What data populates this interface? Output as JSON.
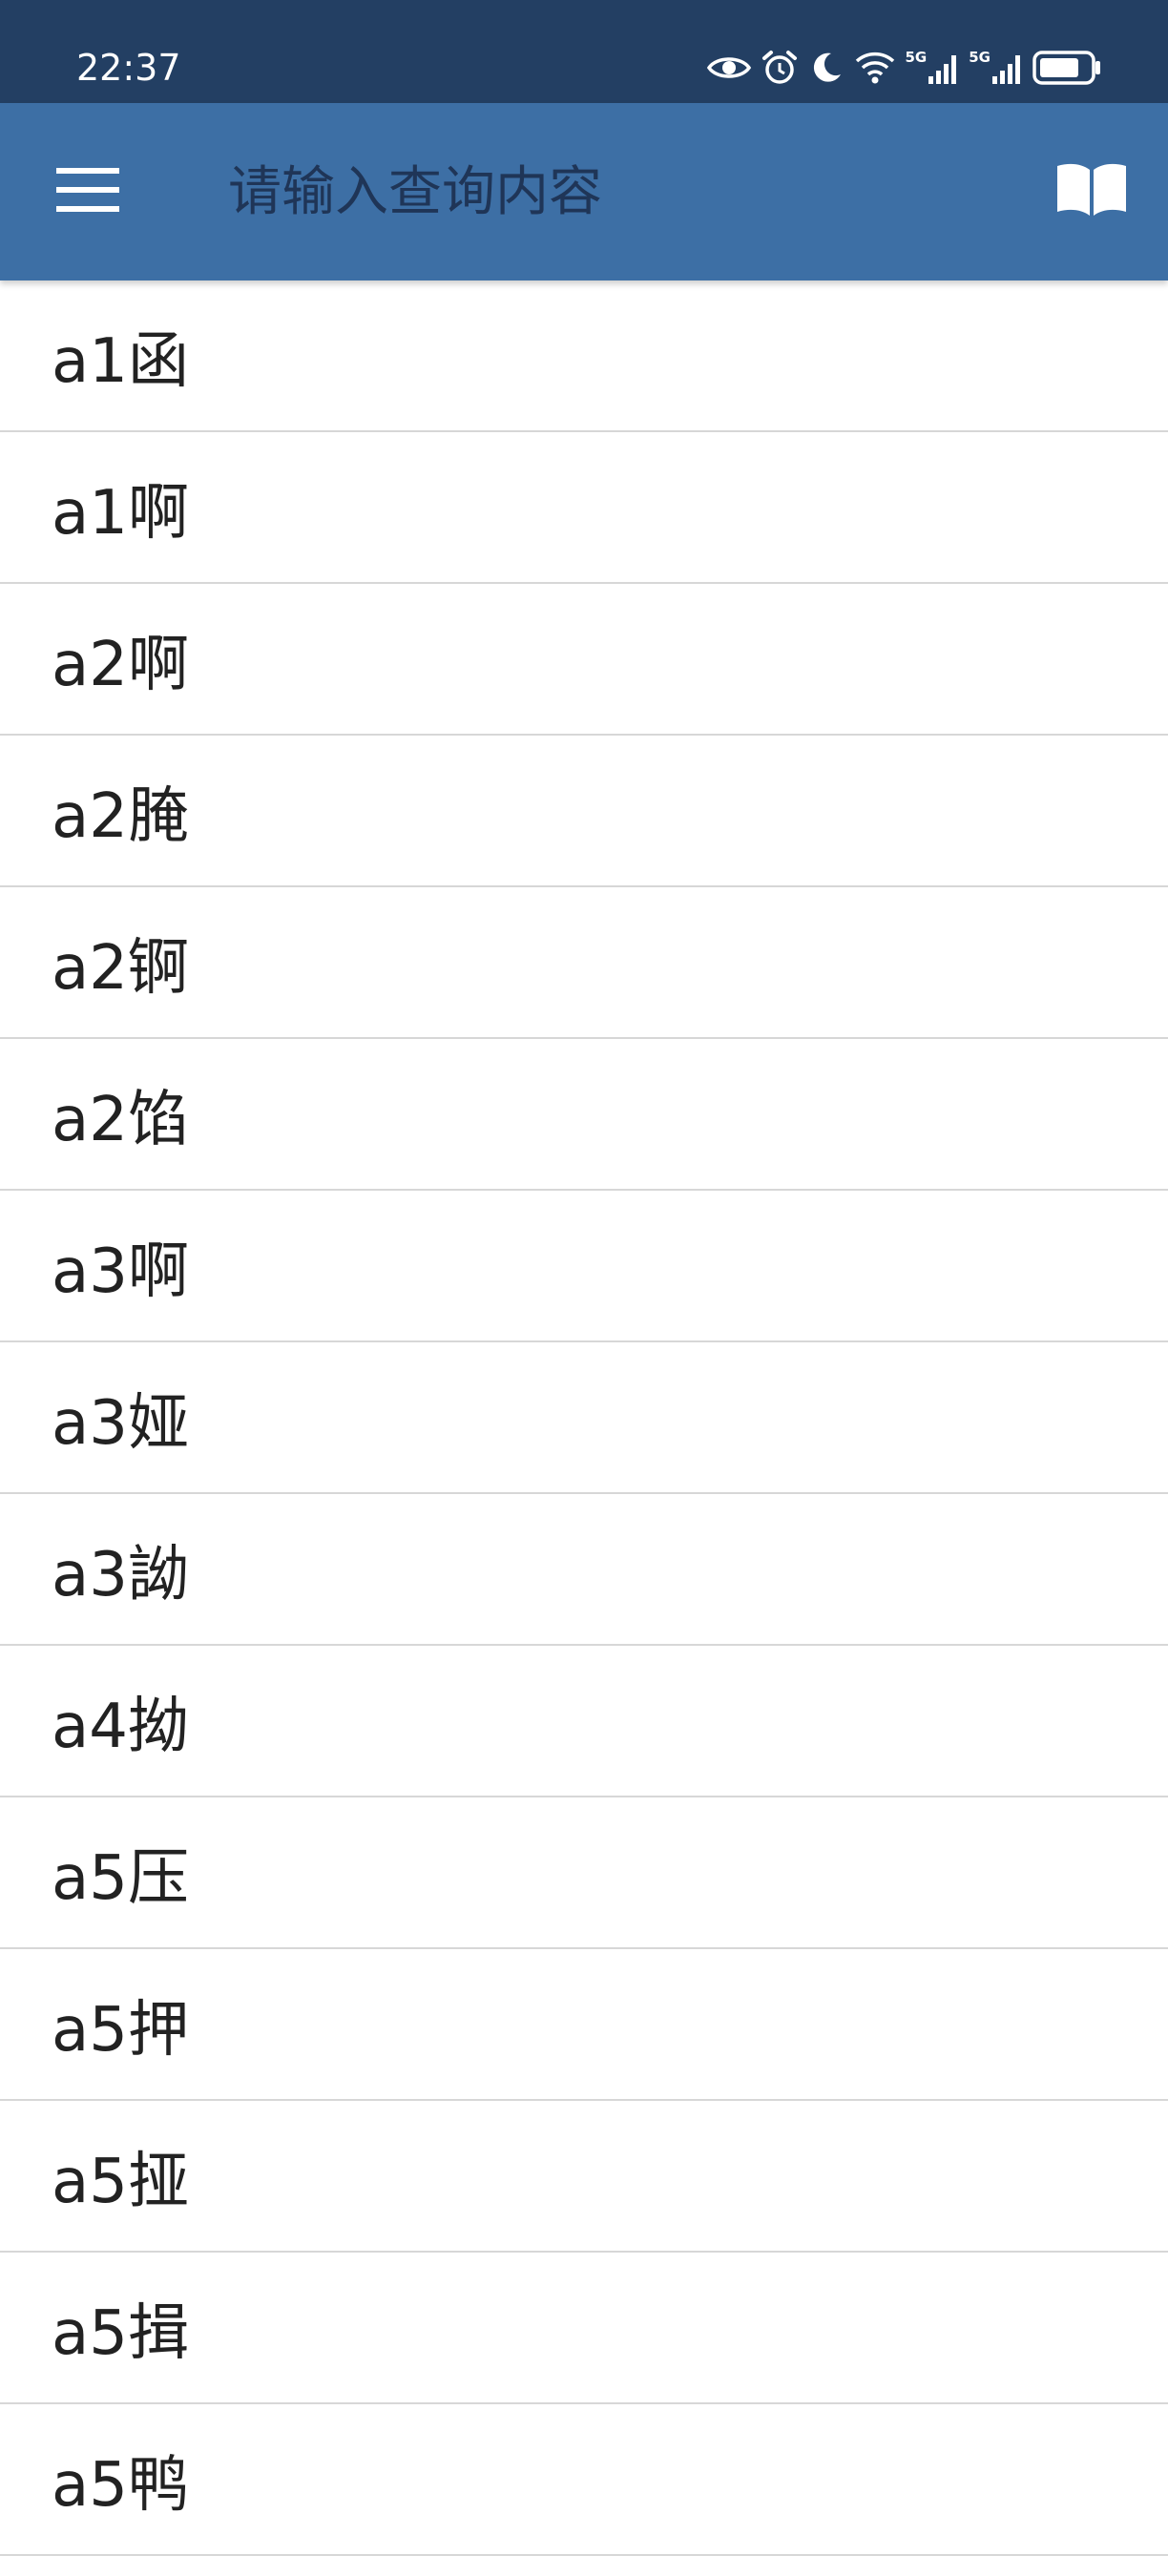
{
  "status_bar": {
    "time": "22:37",
    "icons": [
      "eye-icon",
      "alarm-icon",
      "moon-icon",
      "wifi-icon",
      "signal-5g-icon",
      "signal-5g-icon",
      "battery-icon"
    ],
    "network_label_1": "5G",
    "network_label_2": "5G"
  },
  "app_bar": {
    "menu_icon": "hamburger-menu-icon",
    "search_placeholder": "请输入查询内容",
    "search_value": "",
    "book_icon": "open-book-icon",
    "background_color": "#3d6fa5"
  },
  "list": {
    "items": [
      "a1函",
      "a1啊",
      "a2啊",
      "a2腌",
      "a2锕",
      "a2馅",
      "a3啊",
      "a3娅",
      "a3詏",
      "a4拗",
      "a5压",
      "a5押",
      "a5挜",
      "a5揖",
      "a5鸭"
    ]
  },
  "colors": {
    "status_bar": "#233f63",
    "app_bar": "#3d6fa5",
    "divider": "#d7d7d7",
    "text": "#222222"
  }
}
